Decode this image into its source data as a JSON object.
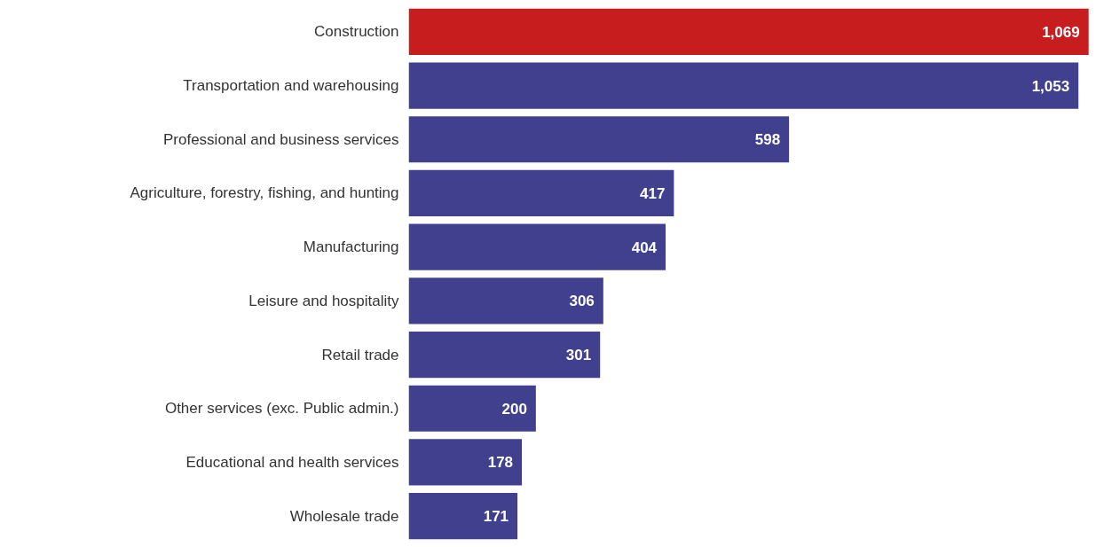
{
  "chart_data": {
    "type": "bar",
    "orientation": "horizontal",
    "value_labels": [
      "1,069",
      "1,053",
      "598",
      "417",
      "404",
      "306",
      "301",
      "200",
      "178",
      "171"
    ],
    "categories": [
      "Construction",
      "Transportation and warehousing",
      "Professional and business services",
      "Agriculture, forestry, fishing, and hunting",
      "Manufacturing",
      "Leisure and hospitality",
      "Retail trade",
      "Other services (exc. Public admin.)",
      "Educational and health services",
      "Wholesale trade"
    ],
    "values": [
      1069,
      1053,
      598,
      417,
      404,
      306,
      301,
      200,
      178,
      171
    ],
    "colors": [
      "#c81d1f",
      "#40408f",
      "#40408f",
      "#40408f",
      "#40408f",
      "#40408f",
      "#40408f",
      "#40408f",
      "#40408f",
      "#40408f"
    ]
  }
}
